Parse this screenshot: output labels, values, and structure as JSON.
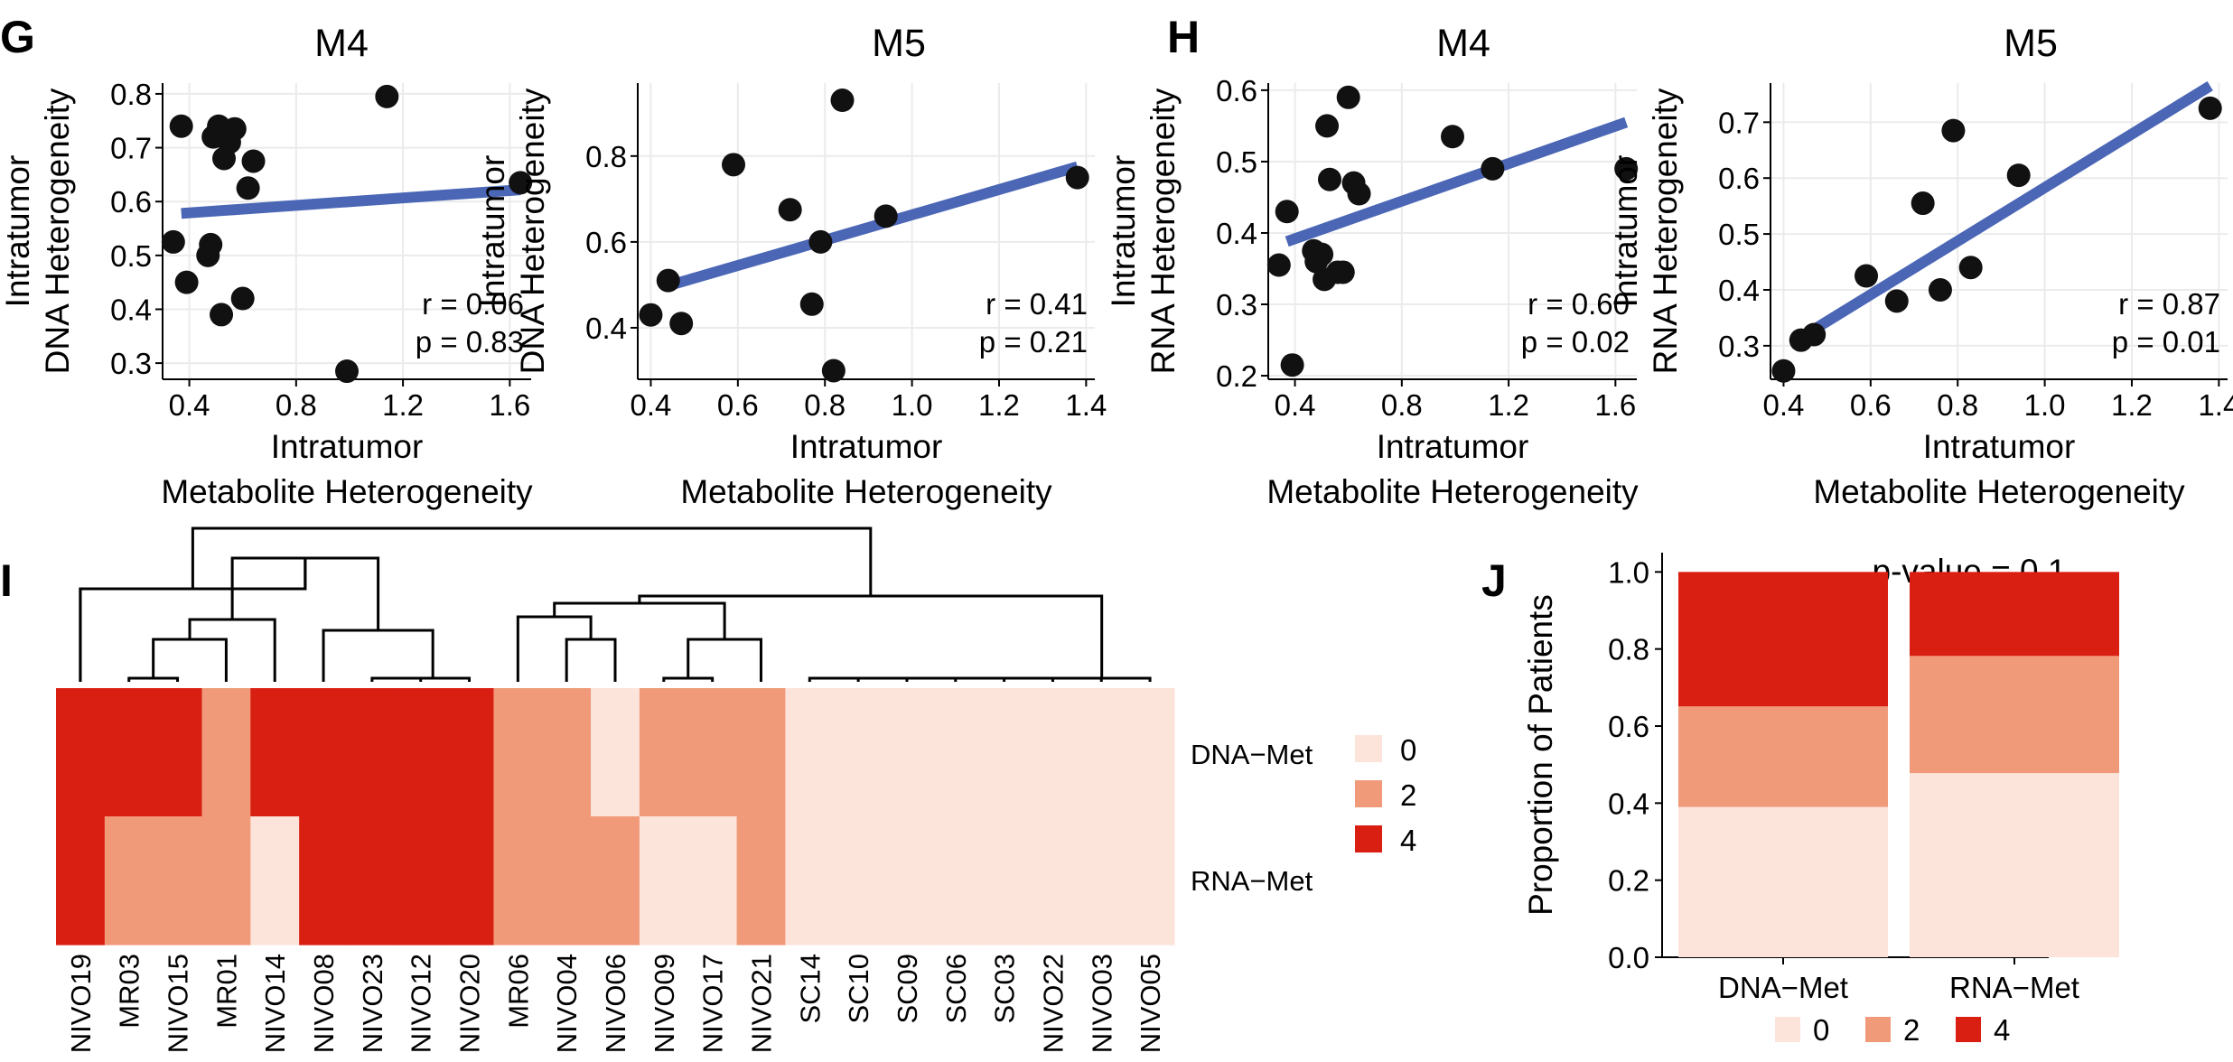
{
  "colors": {
    "level_0": "#fce4db",
    "level_2": "#f09a7a",
    "level_4": "#d91e12",
    "fit_line": "#4a66b5",
    "point": "#111111",
    "grid": "#ebebeb"
  },
  "chart_data": [
    {
      "id": "G-M4",
      "panel_letter": "G",
      "type": "scatter",
      "title": "M4",
      "xlabel_lines": [
        "Intratumor",
        "Metabolite Heterogeneity"
      ],
      "ylabel_lines": [
        "Intratumor",
        "DNA Heterogeneity"
      ],
      "xlim": [
        0.3,
        1.68
      ],
      "ylim": [
        0.27,
        0.82
      ],
      "xticks": [
        0.4,
        0.8,
        1.2,
        1.6
      ],
      "xtick_labels": [
        "0.4",
        "0.8",
        "1.2",
        "1.6"
      ],
      "yticks": [
        0.3,
        0.4,
        0.5,
        0.6,
        0.7,
        0.8
      ],
      "ytick_labels": [
        "0.3",
        "0.4",
        "0.5",
        "0.6",
        "0.7",
        "0.8"
      ],
      "x": [
        0.34,
        0.37,
        0.39,
        0.47,
        0.48,
        0.49,
        0.51,
        0.52,
        0.53,
        0.55,
        0.57,
        0.6,
        0.62,
        0.64,
        0.99,
        1.14,
        1.64
      ],
      "y": [
        0.525,
        0.74,
        0.45,
        0.5,
        0.52,
        0.72,
        0.74,
        0.39,
        0.68,
        0.71,
        0.735,
        0.42,
        0.625,
        0.675,
        0.285,
        0.795,
        0.635
      ],
      "fit": {
        "x": [
          0.37,
          1.64
        ],
        "y": [
          0.578,
          0.622
        ]
      },
      "r_label": "r = 0.06",
      "p_label": "p = 0.83"
    },
    {
      "id": "G-M5",
      "panel_letter": "",
      "type": "scatter",
      "title": "M5",
      "xlabel_lines": [
        "Intratumor",
        "Metabolite Heterogeneity"
      ],
      "ylabel_lines": [
        "Intratumor",
        "DNA Heterogeneity"
      ],
      "xlim": [
        0.37,
        1.42
      ],
      "ylim": [
        0.28,
        0.97
      ],
      "xticks": [
        0.4,
        0.6,
        0.8,
        1.0,
        1.2,
        1.4
      ],
      "xtick_labels": [
        "0.4",
        "0.6",
        "0.8",
        "1.0",
        "1.2",
        "1.4"
      ],
      "yticks": [
        0.4,
        0.6,
        0.8
      ],
      "ytick_labels": [
        "0.4",
        "0.6",
        "0.8"
      ],
      "x": [
        0.4,
        0.44,
        0.47,
        0.59,
        0.72,
        0.77,
        0.79,
        0.82,
        0.84,
        0.94,
        1.38
      ],
      "y": [
        0.43,
        0.51,
        0.41,
        0.78,
        0.675,
        0.455,
        0.6,
        0.3,
        0.93,
        0.66,
        0.75
      ],
      "fit": {
        "x": [
          0.43,
          1.38
        ],
        "y": [
          0.495,
          0.775
        ]
      },
      "r_label": "r = 0.41",
      "p_label": "p = 0.21"
    },
    {
      "id": "H-M4",
      "panel_letter": "H",
      "type": "scatter",
      "title": "M4",
      "xlabel_lines": [
        "Intratumor",
        "Metabolite Heterogeneity"
      ],
      "ylabel_lines": [
        "Intratumor",
        "RNA Heterogeneity"
      ],
      "xlim": [
        0.3,
        1.68
      ],
      "ylim": [
        0.195,
        0.61
      ],
      "xticks": [
        0.4,
        0.8,
        1.2,
        1.6
      ],
      "xtick_labels": [
        "0.4",
        "0.8",
        "1.2",
        "1.6"
      ],
      "yticks": [
        0.2,
        0.3,
        0.4,
        0.5,
        0.6
      ],
      "ytick_labels": [
        "0.2",
        "0.3",
        "0.4",
        "0.5",
        "0.6"
      ],
      "x": [
        0.34,
        0.37,
        0.39,
        0.47,
        0.48,
        0.5,
        0.51,
        0.52,
        0.53,
        0.56,
        0.58,
        0.6,
        0.62,
        0.64,
        0.99,
        1.14,
        1.64
      ],
      "y": [
        0.355,
        0.43,
        0.215,
        0.375,
        0.36,
        0.37,
        0.335,
        0.55,
        0.475,
        0.345,
        0.345,
        0.59,
        0.47,
        0.455,
        0.535,
        0.49,
        0.49
      ],
      "fit": {
        "x": [
          0.37,
          1.64
        ],
        "y": [
          0.388,
          0.555
        ]
      },
      "r_label": "r = 0.60",
      "p_label": "p = 0.02"
    },
    {
      "id": "H-M5",
      "panel_letter": "",
      "type": "scatter",
      "title": "M5",
      "xlabel_lines": [
        "Intratumor",
        "Metabolite Heterogeneity"
      ],
      "ylabel_lines": [
        "Intratumor",
        "RNA Heterogeneity"
      ],
      "xlim": [
        0.37,
        1.42
      ],
      "ylim": [
        0.24,
        0.77
      ],
      "xticks": [
        0.4,
        0.6,
        0.8,
        1.0,
        1.2,
        1.4
      ],
      "xtick_labels": [
        "0.4",
        "0.6",
        "0.8",
        "1.0",
        "1.2",
        "1.4"
      ],
      "yticks": [
        0.3,
        0.4,
        0.5,
        0.6,
        0.7
      ],
      "ytick_labels": [
        "0.3",
        "0.4",
        "0.5",
        "0.6",
        "0.7"
      ],
      "x": [
        0.4,
        0.44,
        0.47,
        0.59,
        0.66,
        0.72,
        0.76,
        0.79,
        0.83,
        0.94,
        1.38
      ],
      "y": [
        0.255,
        0.31,
        0.32,
        0.425,
        0.38,
        0.555,
        0.4,
        0.685,
        0.44,
        0.605,
        0.725
      ],
      "fit": {
        "x": [
          0.43,
          1.38
        ],
        "y": [
          0.31,
          0.765
        ]
      },
      "r_label": "r = 0.87",
      "p_label": "p = 0.01"
    },
    {
      "id": "I",
      "panel_letter": "I",
      "type": "heatmap",
      "columns": [
        "NIVO19",
        "MR03",
        "NIVO15",
        "MR01",
        "NIVO14",
        "NIVO08",
        "NIVO23",
        "NIVO12",
        "NIVO20",
        "MR06",
        "NIVO04",
        "NIVO06",
        "NIVO09",
        "NIVO17",
        "NIVO21",
        "SC14",
        "SC10",
        "SC09",
        "SC06",
        "SC03",
        "NIVO22",
        "NIVO03",
        "NIVO05"
      ],
      "rows": [
        "DNA−Met",
        "RNA−Met"
      ],
      "values": [
        [
          4,
          4,
          4,
          2,
          4,
          4,
          4,
          4,
          4,
          2,
          2,
          0,
          2,
          2,
          2,
          0,
          0,
          0,
          0,
          0,
          0,
          0,
          0
        ],
        [
          4,
          2,
          2,
          2,
          0,
          4,
          4,
          4,
          4,
          2,
          2,
          2,
          0,
          0,
          2,
          0,
          0,
          0,
          0,
          0,
          0,
          0,
          0
        ]
      ],
      "legend_labels": [
        "0",
        "2",
        "4"
      ]
    },
    {
      "id": "J",
      "panel_letter": "J",
      "type": "bar",
      "stacked": true,
      "title": "p-value = 0.1",
      "categories": [
        "DNA−Met",
        "RNA−Met"
      ],
      "series": [
        {
          "name": "0",
          "values": [
            0.39,
            0.478
          ]
        },
        {
          "name": "2",
          "values": [
            0.261,
            0.304
          ]
        },
        {
          "name": "4",
          "values": [
            0.349,
            0.218
          ]
        }
      ],
      "ylabel": "Proportion of Patients",
      "ylim": [
        0,
        1.05
      ],
      "yticks": [
        0,
        0.2,
        0.4,
        0.6,
        0.8,
        1.0
      ],
      "ytick_labels": [
        "0.0",
        "0.2",
        "0.4",
        "0.6",
        "0.8",
        "1.0"
      ],
      "legend_labels": [
        "0",
        "2",
        "4"
      ],
      "legend": "bottom"
    }
  ]
}
